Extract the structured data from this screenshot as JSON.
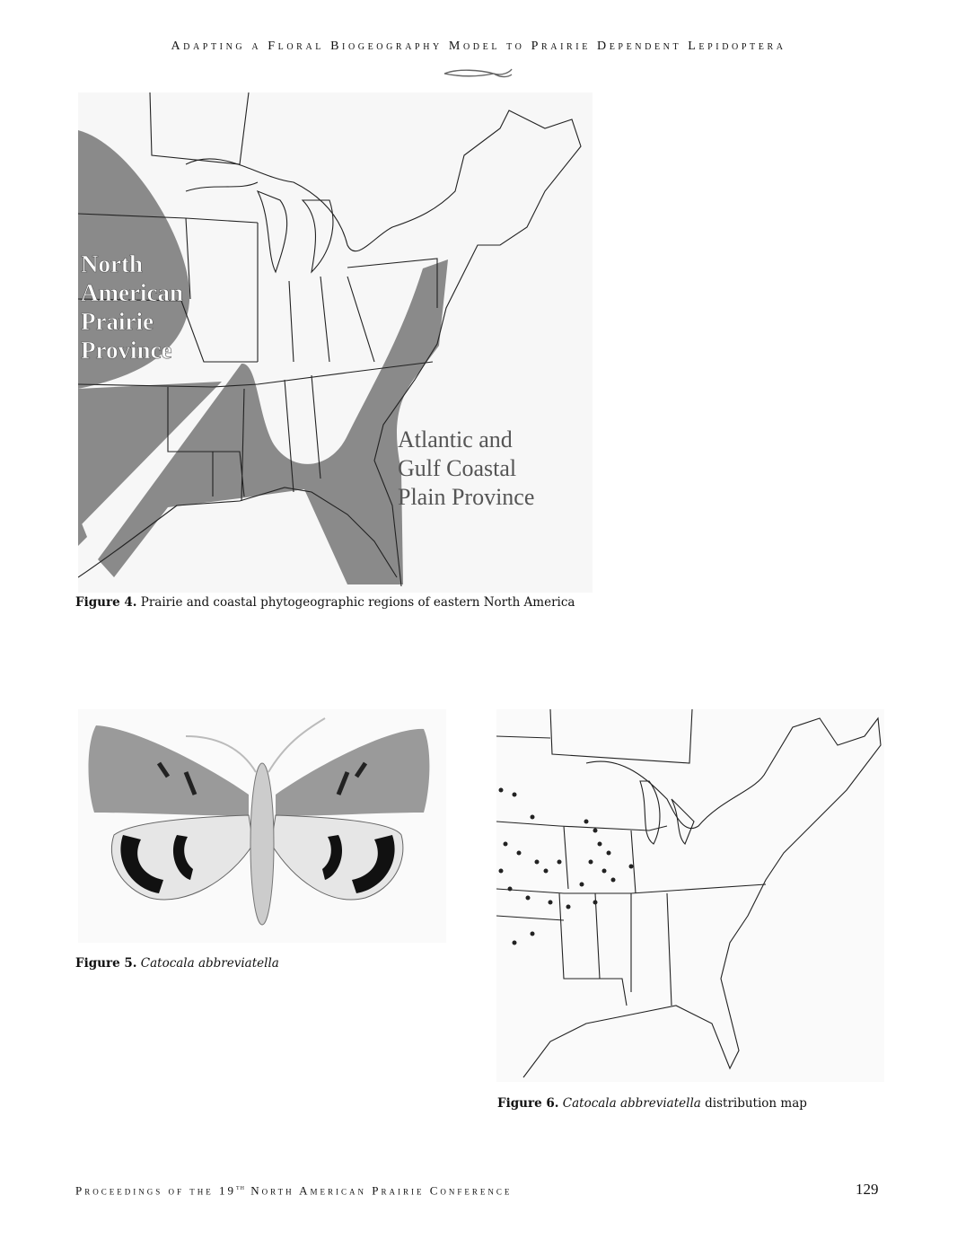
{
  "header": {
    "title": "Adapting a Floral Biogeography Model to Prairie Dependent Lepidoptera"
  },
  "figure4": {
    "map_labels": {
      "prairie": [
        "North",
        "American",
        "Prairie",
        "Province"
      ],
      "coastal": [
        "Atlantic and",
        "Gulf Coastal",
        "Plain Province"
      ]
    },
    "caption": {
      "label": "Figure 4.",
      "text": "Prairie and coastal phytogeographic regions of eastern North America"
    }
  },
  "figure5": {
    "caption": {
      "label": "Figure 5.",
      "text": "Catocala abbreviatella"
    }
  },
  "figure6": {
    "caption": {
      "label": "Figure 6.",
      "italic": "Catocala abbreviatella",
      "text": "distribution map"
    }
  },
  "footer": {
    "text_before": "Proceedings of the 19",
    "superscript": "th",
    "text_after": "North American Prairie Conference",
    "page_number": 129
  }
}
